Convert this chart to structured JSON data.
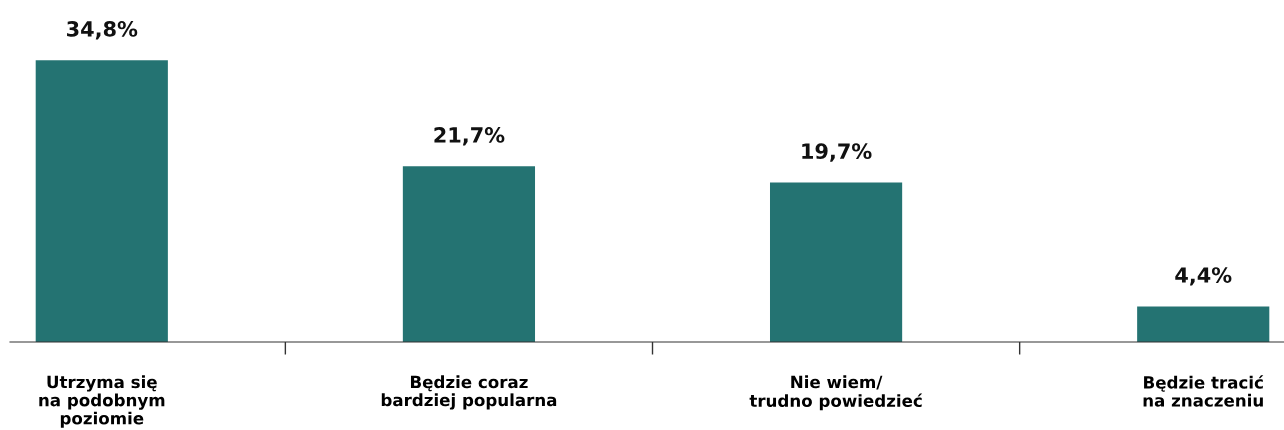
{
  "chart_data": {
    "type": "bar",
    "categories": [
      "Utrzyma się\nna podobnym\npoziomie",
      "Będzie coraz\nbardziej popularna",
      "Nie wiem/\ntrudno powiedzieć",
      "Będzie tracić\nna znaczeniu"
    ],
    "values": [
      34.8,
      21.7,
      19.7,
      4.4
    ],
    "value_labels": [
      "34,8%",
      "21,7%",
      "19,7%",
      "4,4%"
    ],
    "color": "#247372",
    "tick_labels": "x",
    "grid": false
  }
}
